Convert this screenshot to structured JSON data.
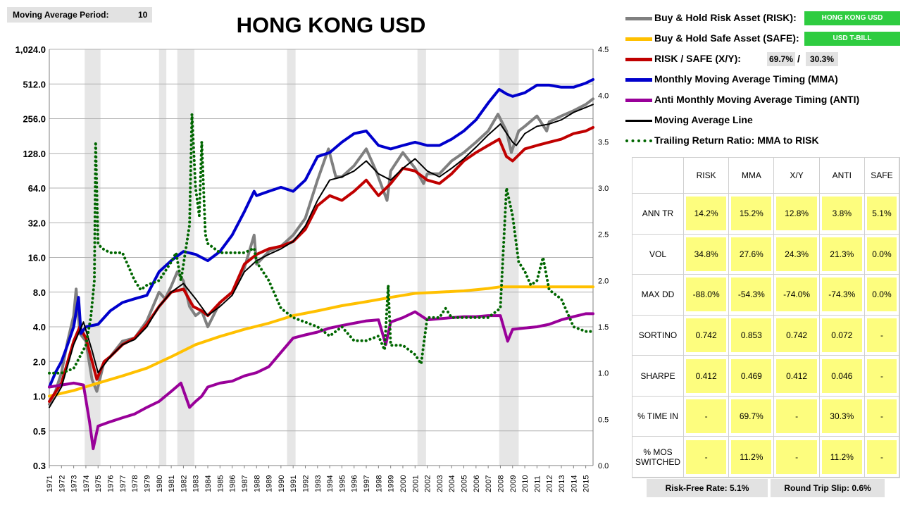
{
  "header": {
    "ma_period_label": "Moving Average Period:",
    "ma_period_value": "10"
  },
  "chart_data": {
    "type": "line",
    "title": "HONG KONG USD",
    "y_scale": "log",
    "ylim": [
      0.3,
      1024
    ],
    "y_ticks": [
      "0.3",
      "0.5",
      "1.0",
      "2.0",
      "4.0",
      "8.0",
      "16.0",
      "32.0",
      "64.0",
      "128.0",
      "256.0",
      "512.0",
      "1,024.0"
    ],
    "y_tick_values": [
      0.25,
      0.5,
      1,
      2,
      4,
      8,
      16,
      32,
      64,
      128,
      256,
      512,
      1024
    ],
    "y2lim": [
      0.0,
      4.5
    ],
    "y2_ticks": [
      "0.0",
      "0.5",
      "1.0",
      "1.5",
      "2.0",
      "2.5",
      "3.0",
      "3.5",
      "4.0",
      "4.5"
    ],
    "x_ticks": [
      "1971",
      "1972",
      "1973",
      "1974",
      "1975",
      "1976",
      "1977",
      "1978",
      "1979",
      "1980",
      "1981",
      "1982",
      "1983",
      "1984",
      "1985",
      "1986",
      "1987",
      "1988",
      "1989",
      "1990",
      "1991",
      "1992",
      "1993",
      "1994",
      "1995",
      "1996",
      "1997",
      "1998",
      "1999",
      "2000",
      "2001",
      "2002",
      "2003",
      "2004",
      "2005",
      "2006",
      "2007",
      "2008",
      "2009",
      "2010",
      "2011",
      "2012",
      "2013",
      "2014",
      "2015"
    ],
    "xlim": [
      1971,
      2015.6
    ],
    "grid": true,
    "recessions": [
      [
        1973.9,
        1975.2
      ],
      [
        1980.0,
        1980.6
      ],
      [
        1981.5,
        1982.9
      ],
      [
        1990.5,
        1991.2
      ],
      [
        2001.2,
        2001.9
      ],
      [
        2007.9,
        2009.5
      ]
    ],
    "series": [
      {
        "name": "Buy & Hold Risk Asset (RISK)",
        "color": "#808080",
        "axis": "left",
        "x": [
          1971,
          1971.5,
          1972,
          1972.5,
          1973,
          1973.2,
          1973.5,
          1974,
          1974.5,
          1974.9,
          1975.5,
          1976,
          1977,
          1978,
          1979,
          1980,
          1980.5,
          1981,
          1981.5,
          1982,
          1982.5,
          1983,
          1983.5,
          1984,
          1985,
          1986,
          1987,
          1987.8,
          1988,
          1989,
          1990,
          1991,
          1992,
          1993,
          1993.9,
          1994.5,
          1995,
          1996,
          1997,
          1997.8,
          1998.7,
          1999,
          2000,
          2001,
          2001.7,
          2002,
          2003,
          2004,
          2005,
          2006,
          2007,
          2007.8,
          2008.5,
          2008.9,
          2009.5,
          2010,
          2011,
          2011.8,
          2012,
          2013,
          2014,
          2015,
          2015.6
        ],
        "y": [
          0.85,
          1.1,
          1.6,
          3.0,
          5.0,
          8.5,
          3.5,
          3.0,
          1.4,
          1.1,
          2.0,
          2.2,
          3.0,
          3.2,
          4.5,
          8.0,
          7.0,
          9.0,
          12.0,
          10.0,
          6.0,
          5.0,
          5.5,
          4.0,
          6.5,
          8.0,
          13.0,
          25.0,
          14.0,
          18.0,
          20.0,
          25.0,
          35.0,
          75.0,
          140.0,
          80.0,
          80.0,
          100.0,
          140.0,
          90.0,
          50.0,
          90.0,
          130.0,
          95.0,
          70.0,
          85.0,
          85.0,
          110.0,
          130.0,
          160.0,
          200.0,
          280.0,
          200.0,
          130.0,
          200.0,
          220.0,
          270.0,
          200.0,
          240.0,
          270.0,
          300.0,
          340.0,
          380.0
        ]
      },
      {
        "name": "Buy & Hold Safe Asset (SAFE)",
        "color": "#ffc000",
        "axis": "left",
        "x": [
          1971,
          1973,
          1975,
          1977,
          1979,
          1981,
          1983,
          1985,
          1987,
          1989,
          1991,
          1993,
          1995,
          1997,
          1999,
          2001,
          2003,
          2005,
          2007,
          2008,
          2009,
          2015.6
        ],
        "y": [
          1.0,
          1.12,
          1.3,
          1.5,
          1.75,
          2.2,
          2.8,
          3.3,
          3.8,
          4.3,
          5.0,
          5.5,
          6.1,
          6.6,
          7.2,
          7.8,
          8.0,
          8.2,
          8.6,
          8.9,
          8.9,
          8.9
        ]
      },
      {
        "name": "RISK / SAFE (X/Y):",
        "color": "#c00000",
        "axis": "left",
        "x": [
          1971,
          1972,
          1973,
          1973.5,
          1974,
          1974.9,
          1975.5,
          1976,
          1977,
          1978,
          1979,
          1980,
          1981,
          1982,
          1982.8,
          1983.5,
          1984,
          1985,
          1986,
          1987,
          1988,
          1989,
          1990,
          1991,
          1992,
          1993,
          1994,
          1995,
          1996,
          1997,
          1998,
          1999,
          2000,
          2001,
          2002,
          2003,
          2004,
          2005,
          2006,
          2007,
          2007.9,
          2008.5,
          2009,
          2010,
          2011,
          2012,
          2013,
          2014,
          2015,
          2015.6
        ],
        "y": [
          0.9,
          1.3,
          3.0,
          4.0,
          3.2,
          1.4,
          2.0,
          2.2,
          2.8,
          3.2,
          4.2,
          6.0,
          8.0,
          8.5,
          6.0,
          5.5,
          5.0,
          6.5,
          8.0,
          14.0,
          17.0,
          19.0,
          20.0,
          22.0,
          28.0,
          45.0,
          55.0,
          50.0,
          60.0,
          75.0,
          55.0,
          70.0,
          95.0,
          90.0,
          75.0,
          70.0,
          85.0,
          110.0,
          130.0,
          150.0,
          170.0,
          120.0,
          110.0,
          140.0,
          150.0,
          160.0,
          170.0,
          190.0,
          200.0,
          215.0
        ]
      },
      {
        "name": "Monthly Moving Average Timing (MMA)",
        "color": "#0000cc",
        "axis": "left",
        "x": [
          1971,
          1971.5,
          1972,
          1972.5,
          1973,
          1973.4,
          1973.6,
          1974,
          1975,
          1976,
          1977,
          1978,
          1979,
          1980,
          1981,
          1982,
          1983,
          1984,
          1985,
          1986,
          1987,
          1987.8,
          1988,
          1989,
          1990,
          1991,
          1992,
          1993,
          1994,
          1995,
          1996,
          1997,
          1998,
          1999,
          2000,
          2001,
          2002,
          2003,
          2004,
          2005,
          2006,
          2007,
          2007.9,
          2008.5,
          2009,
          2010,
          2011,
          2012,
          2013,
          2014,
          2015,
          2015.6
        ],
        "y": [
          1.2,
          1.6,
          2.0,
          2.8,
          4.0,
          7.2,
          3.5,
          4.0,
          4.2,
          5.5,
          6.5,
          7.0,
          7.5,
          12.0,
          15.0,
          18.0,
          17.0,
          15.0,
          18.0,
          25.0,
          40.0,
          60.0,
          55.0,
          60.0,
          65.0,
          60.0,
          75.0,
          120.0,
          130.0,
          160.0,
          190.0,
          200.0,
          150.0,
          140.0,
          150.0,
          160.0,
          150.0,
          150.0,
          170.0,
          200.0,
          250.0,
          350.0,
          460.0,
          420.0,
          400.0,
          430.0,
          500.0,
          500.0,
          480.0,
          480.0,
          520.0,
          560.0
        ]
      },
      {
        "name": "Anti Monthly Moving Average Timing (ANTI)",
        "color": "#990099",
        "axis": "left",
        "x": [
          1971,
          1973,
          1973.8,
          1974.3,
          1974.6,
          1975,
          1976,
          1977,
          1978,
          1979,
          1980,
          1981,
          1981.8,
          1982.5,
          1983,
          1983.5,
          1984,
          1985,
          1986,
          1987,
          1988,
          1989,
          1990,
          1991,
          1992,
          1993,
          1994,
          1995,
          1996,
          1997,
          1998,
          1998.6,
          1999,
          2000,
          2001,
          2002,
          2003,
          2004,
          2005,
          2006,
          2007,
          2008,
          2008.6,
          2009,
          2010,
          2011,
          2012,
          2013,
          2014,
          2015,
          2015.6
        ],
        "y": [
          1.2,
          1.3,
          1.25,
          0.6,
          0.35,
          0.55,
          0.6,
          0.65,
          0.7,
          0.8,
          0.9,
          1.1,
          1.3,
          0.8,
          0.9,
          1.0,
          1.2,
          1.3,
          1.35,
          1.5,
          1.6,
          1.8,
          2.4,
          3.2,
          3.4,
          3.6,
          3.9,
          4.1,
          4.3,
          4.5,
          4.6,
          2.8,
          4.4,
          4.8,
          5.4,
          4.6,
          4.7,
          4.8,
          4.9,
          4.9,
          5.0,
          5.0,
          3.0,
          3.8,
          3.9,
          4.0,
          4.2,
          4.6,
          4.9,
          5.2,
          5.2
        ]
      },
      {
        "name": "Moving Average Line",
        "color": "#000000",
        "axis": "left",
        "x": [
          1971,
          1972,
          1973,
          1973.8,
          1974.5,
          1975,
          1976,
          1977,
          1978,
          1979,
          1980,
          1981,
          1982,
          1983,
          1984,
          1985,
          1986,
          1987,
          1988,
          1989,
          1990,
          1991,
          1992,
          1993,
          1994,
          1995,
          1996,
          1997,
          1998,
          1999,
          2000,
          2001,
          2002,
          2003,
          2004,
          2005,
          2006,
          2007,
          2008,
          2009,
          2009.3,
          2010,
          2011,
          2012,
          2013,
          2014,
          2015,
          2015.6
        ],
        "y": [
          0.8,
          1.2,
          2.8,
          4.4,
          2.5,
          1.6,
          2.2,
          2.8,
          3.1,
          4.0,
          6.0,
          8.0,
          9.5,
          7.0,
          5.0,
          6.0,
          7.5,
          12.0,
          15.0,
          17.0,
          19.0,
          22.0,
          30.0,
          50.0,
          75.0,
          80.0,
          90.0,
          110.0,
          85.0,
          75.0,
          95.0,
          115.0,
          90.0,
          80.0,
          95.0,
          115.0,
          145.0,
          185.0,
          230.0,
          160.0,
          150.0,
          190.0,
          220.0,
          230.0,
          250.0,
          290.0,
          320.0,
          340.0
        ]
      },
      {
        "name": "Trailing Return Ratio: MMA to RISK",
        "color": "#006600",
        "axis": "right",
        "dotted": true,
        "x": [
          1971,
          1972,
          1973,
          1974,
          1974.4,
          1974.7,
          1974.8,
          1975,
          1975.3,
          1976,
          1977,
          1978,
          1978.5,
          1979,
          1980,
          1981,
          1981.4,
          1981.8,
          1982.5,
          1982.7,
          1983,
          1983.3,
          1983.5,
          1983.8,
          1984,
          1985,
          1986,
          1987,
          1987.8,
          1988,
          1989,
          1990,
          1991,
          1992,
          1993,
          1994,
          1995,
          1996,
          1997,
          1998,
          1998.5,
          1998.8,
          1999,
          2000,
          2001,
          2001.5,
          2002,
          2003,
          2003.5,
          2004,
          2005,
          2006,
          2007,
          2008,
          2008.5,
          2009,
          2009.5,
          2010,
          2010.5,
          2011,
          2011.5,
          2012,
          2013,
          2014,
          2015,
          2015.6
        ],
        "y": [
          1.0,
          1.0,
          1.05,
          1.3,
          1.6,
          2.0,
          3.5,
          2.4,
          2.35,
          2.3,
          2.3,
          2.0,
          1.9,
          1.95,
          2.0,
          2.2,
          2.3,
          2.0,
          2.6,
          3.8,
          3.0,
          2.7,
          3.5,
          2.5,
          2.4,
          2.3,
          2.3,
          2.3,
          2.35,
          2.2,
          2.0,
          1.7,
          1.6,
          1.55,
          1.5,
          1.4,
          1.5,
          1.35,
          1.35,
          1.4,
          1.25,
          1.95,
          1.3,
          1.3,
          1.2,
          1.1,
          1.6,
          1.6,
          1.7,
          1.6,
          1.6,
          1.6,
          1.6,
          1.7,
          3.0,
          2.7,
          2.2,
          2.1,
          1.95,
          2.0,
          2.25,
          1.9,
          1.8,
          1.5,
          1.45,
          1.45
        ]
      }
    ]
  },
  "legend": {
    "risk_label": "Buy & Hold Risk Asset (RISK):",
    "risk_tag": "HONG KONG USD",
    "safe_label": "Buy & Hold Safe Asset (SAFE):",
    "safe_tag": "USD T-BILL",
    "xy_label": "RISK / SAFE (X/Y):",
    "xy_risk_pct": "69.7%",
    "xy_sep": "/",
    "xy_safe_pct": "30.3%",
    "mma_label": "Monthly Moving Average Timing (MMA)",
    "anti_label": "Anti Monthly Moving Average Timing (ANTI)",
    "ma_label": "Moving Average Line",
    "trr_label": "Trailing Return Ratio: MMA to RISK"
  },
  "stats": {
    "columns": [
      "RISK",
      "MMA",
      "X/Y",
      "ANTI",
      "SAFE"
    ],
    "rows": [
      {
        "label": "ANN TR",
        "values": [
          "14.2%",
          "15.2%",
          "12.8%",
          "3.8%",
          "5.1%"
        ]
      },
      {
        "label": "VOL",
        "values": [
          "34.8%",
          "27.6%",
          "24.3%",
          "21.3%",
          "0.0%"
        ]
      },
      {
        "label": "MAX DD",
        "values": [
          "-88.0%",
          "-54.3%",
          "-74.0%",
          "-74.3%",
          "0.0%"
        ]
      },
      {
        "label": "SORTINO",
        "values": [
          "0.742",
          "0.853",
          "0.742",
          "0.072",
          "-"
        ]
      },
      {
        "label": "SHARPE",
        "values": [
          "0.412",
          "0.469",
          "0.412",
          "0.046",
          "-"
        ]
      },
      {
        "label": "% TIME IN",
        "values": [
          "-",
          "69.7%",
          "-",
          "30.3%",
          "-"
        ]
      },
      {
        "label": "% MOS SWITCHED",
        "values": [
          "-",
          "11.2%",
          "-",
          "11.2%",
          "-"
        ]
      }
    ]
  },
  "footer": {
    "risk_free": "Risk-Free Rate:   5.1%",
    "slip": "Round Trip Slip:   0.6%"
  }
}
